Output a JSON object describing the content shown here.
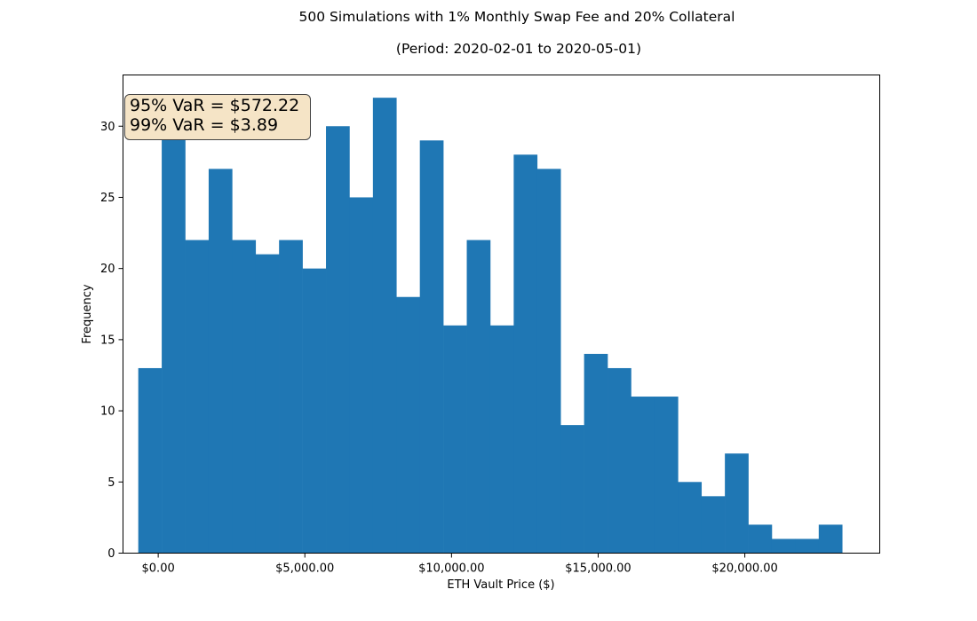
{
  "chart_data": {
    "type": "bar",
    "title": "500 Simulations with 1% Monthly Swap Fee and 20% Collateral",
    "subtitle": "(Period: 2020-02-01 to 2020-05-01)",
    "xlabel": "ETH Vault Price ($)",
    "ylabel": "Frequency",
    "bar_color": "#1f77b4",
    "xlim": [
      -1200,
      24600
    ],
    "ylim": [
      0,
      33.6
    ],
    "bin_width": 800,
    "bin_start": -680,
    "x_ticks": [
      0,
      5000,
      10000,
      15000,
      20000
    ],
    "x_tick_labels": [
      "$0.00",
      "$5,000.00",
      "$10,000.00",
      "$15,000.00",
      "$20,000.00"
    ],
    "y_ticks": [
      0,
      5,
      10,
      15,
      20,
      25,
      30
    ],
    "y_tick_labels": [
      "0",
      "5",
      "10",
      "15",
      "20",
      "25",
      "30"
    ],
    "values": [
      13,
      30,
      22,
      27,
      22,
      21,
      22,
      20,
      30,
      25,
      32,
      18,
      29,
      16,
      22,
      16,
      28,
      27,
      9,
      14,
      13,
      11,
      11,
      5,
      4,
      7,
      2,
      1,
      1,
      2
    ],
    "annotations": [
      "95% VaR = $572.22",
      "99% VaR = $3.89"
    ]
  }
}
